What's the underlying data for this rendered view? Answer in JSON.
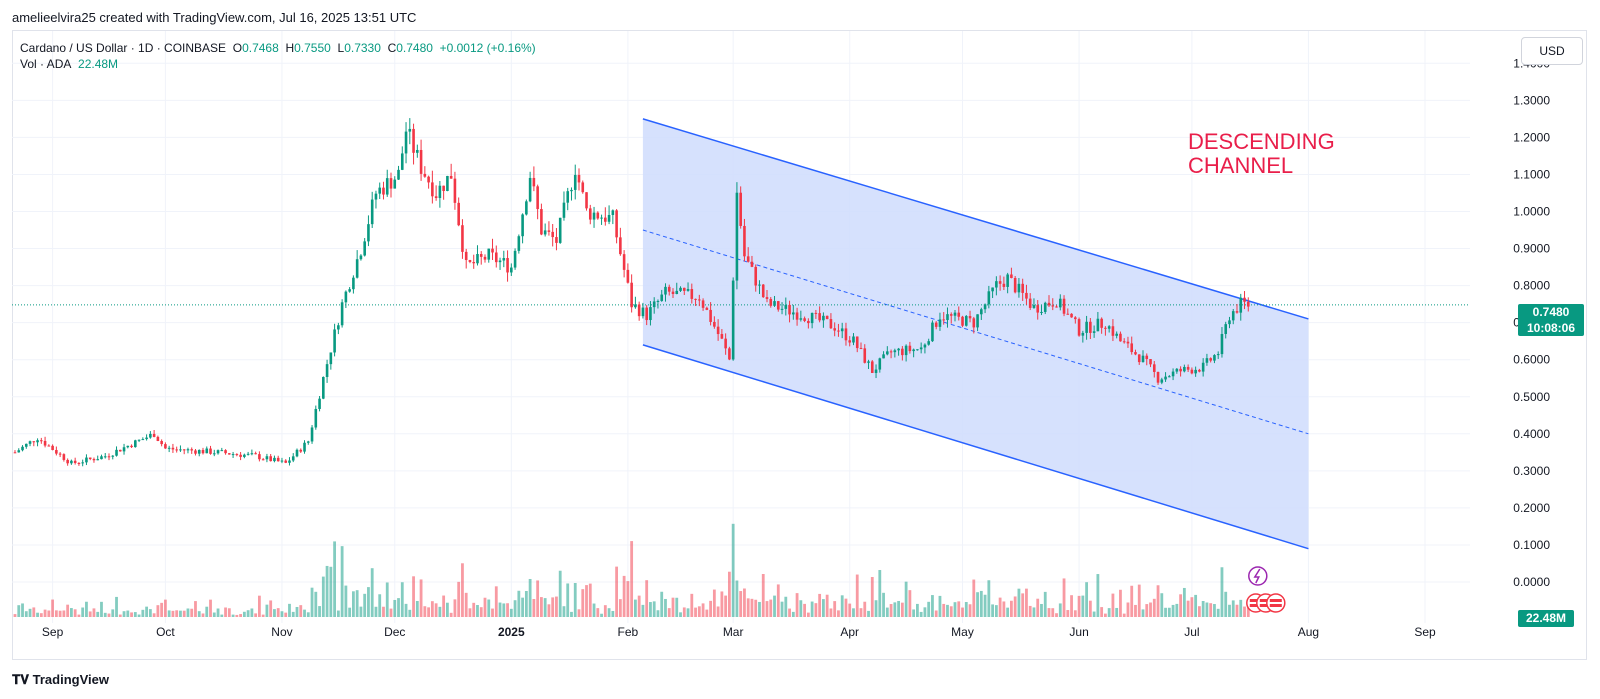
{
  "attribution": "amelieelvira25 created with TradingView.com, Jul 16, 2025 13:51 UTC",
  "legend": {
    "symbol": "Cardano / US Dollar · 1D · COINBASE",
    "o_label": "O",
    "o": "0.7468",
    "h_label": "H",
    "h": "0.7550",
    "l_label": "L",
    "l": "0.7330",
    "c_label": "C",
    "c": "0.7480",
    "change": "+0.0012 (+0.16%)",
    "volume_label": "Vol · ADA",
    "volume_value": "22.48M"
  },
  "currency_button": "USD",
  "last_price": "0.7480",
  "countdown": "10:08:06",
  "last_volume": "22.48M",
  "annotation": "DESCENDING\nCHANNEL",
  "logo_text": "TradingView",
  "colors": {
    "up": "#089981",
    "down": "#f23645",
    "channel": "#2962ff",
    "channel_fill": "#cfdcfd",
    "annotation": "#e91e4a"
  },
  "chart_data": {
    "type": "candlestick",
    "symbol": "ADA/USD",
    "timeframe": "1D",
    "y_ticks": [
      "1.4000",
      "1.3000",
      "1.2000",
      "1.1000",
      "1.0000",
      "0.9000",
      "0.8000",
      "0.7000",
      "0.6000",
      "0.5000",
      "0.4000",
      "0.3000",
      "0.2000",
      "0.1000",
      "0.0000"
    ],
    "ylim": [
      0,
      1.4
    ],
    "x_ticks": [
      "Sep",
      "Oct",
      "Nov",
      "Dec",
      "2025",
      "Feb",
      "Mar",
      "Apr",
      "May",
      "Jun",
      "Jul",
      "Aug",
      "Sep"
    ],
    "price_path": [
      [
        "2024-08-22",
        0.35
      ],
      [
        "2024-08-28",
        0.39
      ],
      [
        "2024-09-06",
        0.32
      ],
      [
        "2024-09-15",
        0.34
      ],
      [
        "2024-09-28",
        0.4
      ],
      [
        "2024-10-01",
        0.36
      ],
      [
        "2024-10-15",
        0.35
      ],
      [
        "2024-10-25",
        0.34
      ],
      [
        "2024-11-02",
        0.32
      ],
      [
        "2024-11-08",
        0.38
      ],
      [
        "2024-11-12",
        0.55
      ],
      [
        "2024-11-17",
        0.75
      ],
      [
        "2024-11-22",
        0.9
      ],
      [
        "2024-11-26",
        1.05
      ],
      [
        "2024-12-02",
        1.1
      ],
      [
        "2024-12-04",
        1.22
      ],
      [
        "2024-12-08",
        1.12
      ],
      [
        "2024-12-12",
        1.05
      ],
      [
        "2024-12-16",
        1.1
      ],
      [
        "2024-12-20",
        0.85
      ],
      [
        "2024-12-26",
        0.88
      ],
      [
        "2025-01-01",
        0.85
      ],
      [
        "2025-01-06",
        1.1
      ],
      [
        "2025-01-09",
        0.95
      ],
      [
        "2025-01-13",
        0.92
      ],
      [
        "2025-01-18",
        1.12
      ],
      [
        "2025-01-21",
        1.0
      ],
      [
        "2025-01-28",
        0.98
      ],
      [
        "2025-02-02",
        0.75
      ],
      [
        "2025-02-06",
        0.72
      ],
      [
        "2025-02-11",
        0.78
      ],
      [
        "2025-02-20",
        0.77
      ],
      [
        "2025-02-26",
        0.65
      ],
      [
        "2025-02-28",
        0.6
      ],
      [
        "2025-03-02",
        1.05
      ],
      [
        "2025-03-04",
        0.88
      ],
      [
        "2025-03-10",
        0.75
      ],
      [
        "2025-03-20",
        0.72
      ],
      [
        "2025-03-28",
        0.69
      ],
      [
        "2025-04-02",
        0.65
      ],
      [
        "2025-04-07",
        0.57
      ],
      [
        "2025-04-12",
        0.62
      ],
      [
        "2025-04-20",
        0.63
      ],
      [
        "2025-04-25",
        0.72
      ],
      [
        "2025-05-04",
        0.7
      ],
      [
        "2025-05-10",
        0.8
      ],
      [
        "2025-05-13",
        0.82
      ],
      [
        "2025-05-20",
        0.74
      ],
      [
        "2025-05-26",
        0.76
      ],
      [
        "2025-06-01",
        0.68
      ],
      [
        "2025-06-08",
        0.7
      ],
      [
        "2025-06-12",
        0.65
      ],
      [
        "2025-06-18",
        0.6
      ],
      [
        "2025-06-22",
        0.55
      ],
      [
        "2025-06-28",
        0.57
      ],
      [
        "2025-07-04",
        0.58
      ],
      [
        "2025-07-08",
        0.62
      ],
      [
        "2025-07-11",
        0.72
      ],
      [
        "2025-07-14",
        0.75
      ],
      [
        "2025-07-16",
        0.748
      ]
    ],
    "channel": {
      "upper": [
        [
          "2025-02-05",
          1.25
        ],
        [
          "2025-08-01",
          0.71
        ]
      ],
      "lower": [
        [
          "2025-02-05",
          0.64
        ],
        [
          "2025-08-01",
          0.09
        ]
      ],
      "middle": [
        [
          "2025-02-05",
          0.95
        ],
        [
          "2025-08-01",
          0.4
        ]
      ]
    },
    "current_price": 0.748
  }
}
